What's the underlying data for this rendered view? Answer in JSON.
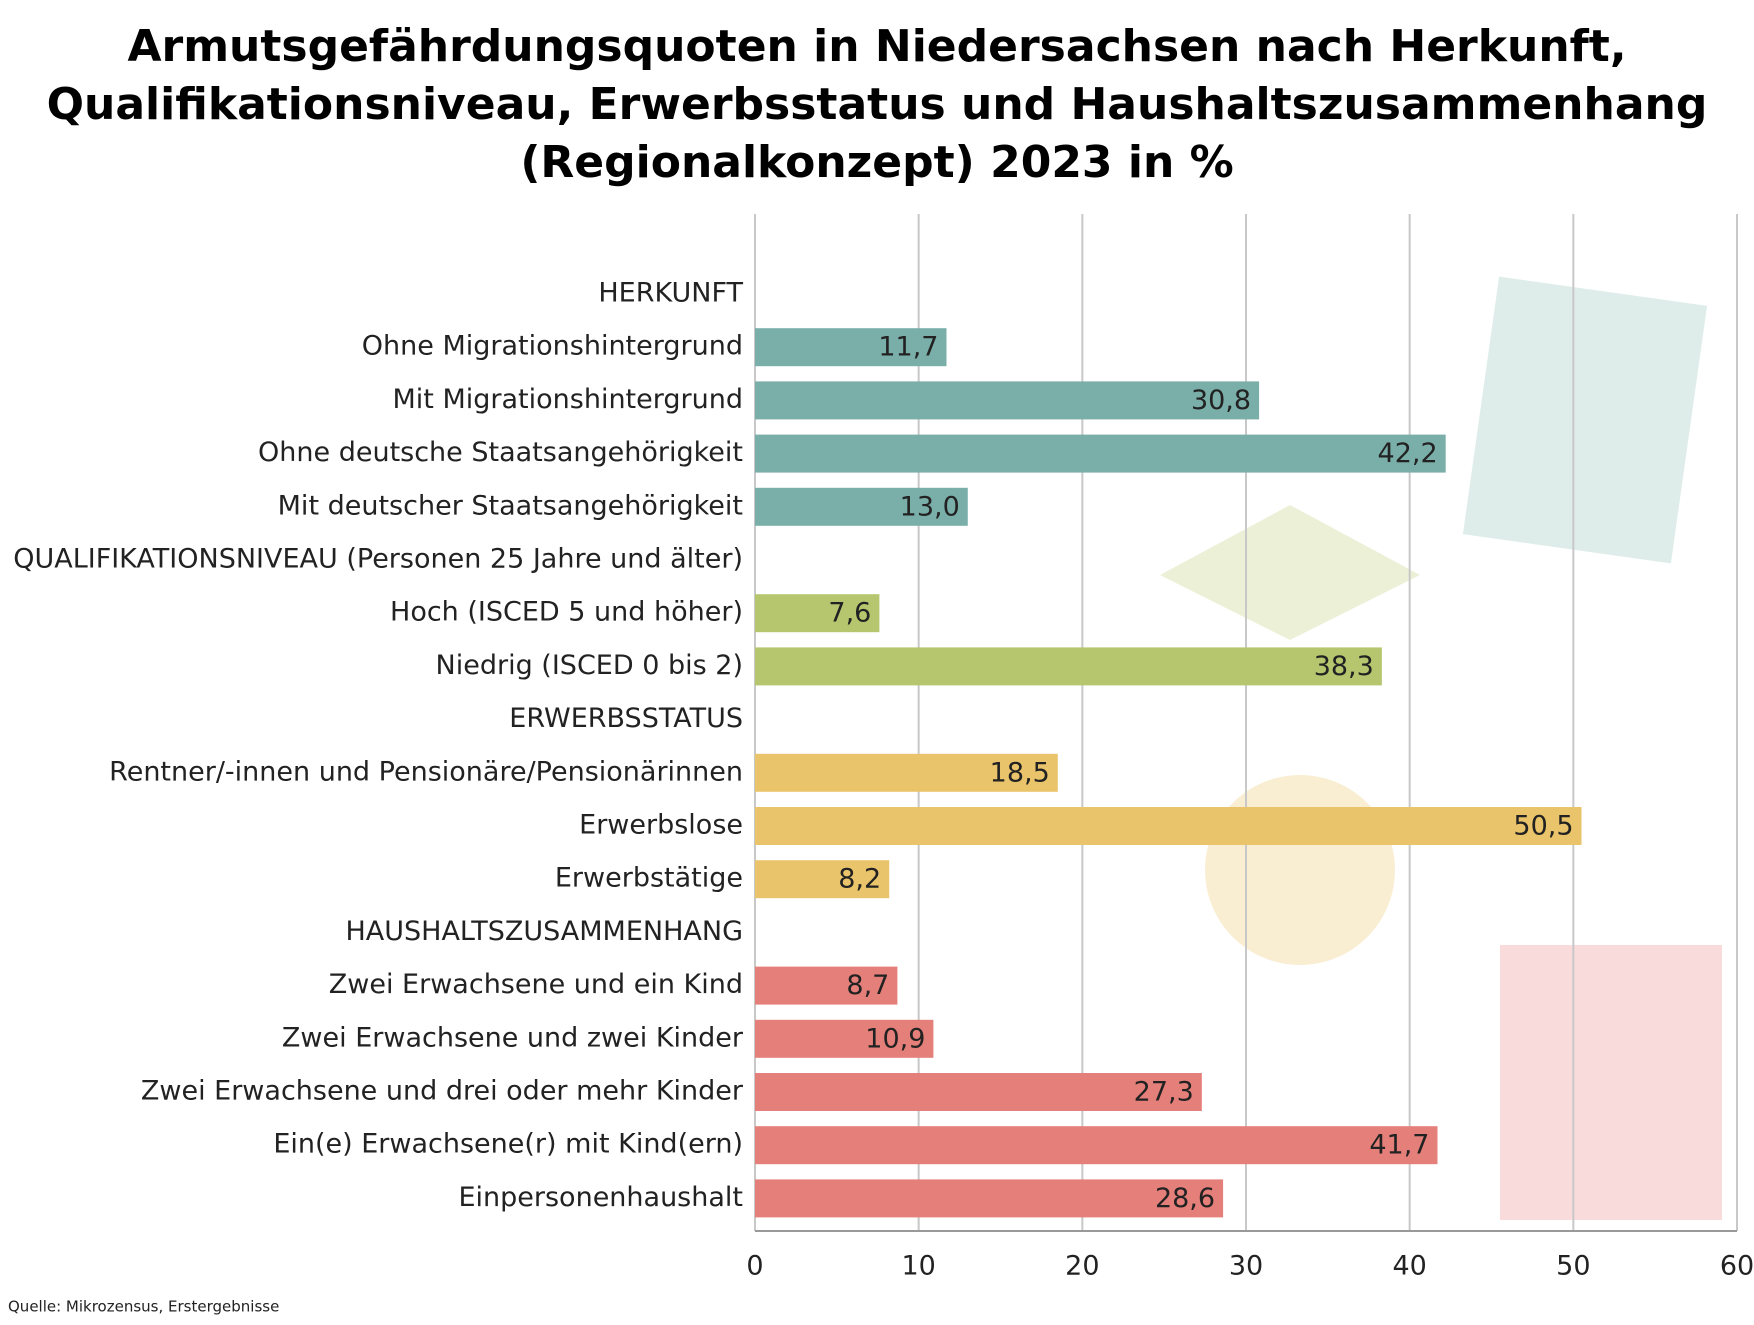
{
  "chart_data": {
    "type": "hbar",
    "title": "Armutsgefährdungsquoten in Niedersachsen nach Herkunft,\nQualifikationsniveau, Erwerbsstatus und Haushaltszusammenhang\n(Regionalkonzept) 2023 in %",
    "categories": [
      "HERKUNFT",
      "Ohne Migrationshintergrund",
      "Mit Migrationshintergrund",
      "Ohne deutsche Staatsangehörigkeit",
      "Mit deutscher Staatsangehörigkeit",
      "QUALIFIKATIONSNIVEAU (Personen 25 Jahre und älter)",
      "Hoch (ISCED 5 und höher)",
      "Niedrig (ISCED 0 bis 2)",
      "ERWERBSSTATUS",
      "Rentner/-innen und Pensionäre/Pensionärinnen",
      "Erwerbslose",
      "Erwerbstätige",
      "HAUSHALTSZUSAMMENHANG",
      "Zwei Erwachsene und ein Kind",
      "Zwei Erwachsene und zwei Kinder",
      "Zwei Erwachsene und drei oder mehr Kinder",
      "Ein(e) Erwachsene(r) mit Kind(ern)",
      "Einpersonenhaushalt"
    ],
    "values": [
      null,
      11.7,
      30.8,
      42.2,
      13.0,
      null,
      7.6,
      38.3,
      null,
      18.5,
      50.5,
      8.2,
      null,
      8.7,
      10.9,
      27.3,
      41.7,
      28.6
    ],
    "value_labels": [
      null,
      "11,7",
      "30,8",
      "42,2",
      "13,0",
      null,
      "7,6",
      "38,3",
      null,
      "18,5",
      "50,5",
      "8,2",
      null,
      "8,7",
      "10,9",
      "27,3",
      "41,7",
      "28,6"
    ],
    "colors": [
      null,
      "#7aaea9",
      "#7aaea9",
      "#7aaea9",
      "#7aaea9",
      null,
      "#b5c66f",
      "#b5c66f",
      null,
      "#e9c46a",
      "#e9c46a",
      "#e9c46a",
      null,
      "#e57f7a",
      "#e57f7a",
      "#e57f7a",
      "#e57f7a",
      "#e57f7a"
    ],
    "xlim": [
      0,
      60
    ],
    "xticks": [
      0,
      10,
      20,
      30,
      40,
      50,
      60
    ],
    "grid": true,
    "source": "Quelle: Mikrozensus, Erstergebnisse"
  }
}
